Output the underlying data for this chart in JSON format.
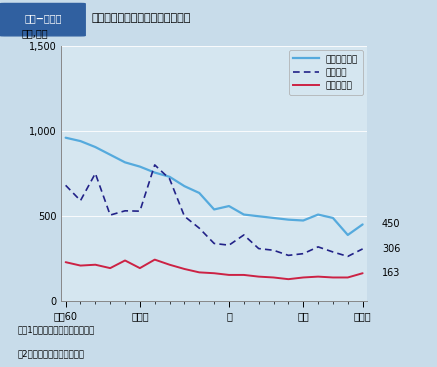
{
  "title": "踏切事故の件数と死傷者数の推移",
  "title_prefix": "第１−４０図",
  "ylabel": "（件,人）",
  "bg_color": "#c8dcea",
  "plot_bg_color": "#d5e6f0",
  "ylim": [
    0,
    1500
  ],
  "yticks": [
    0,
    500,
    1000,
    1500
  ],
  "x_positions": [
    0,
    1,
    2,
    3,
    4,
    5,
    6,
    7,
    8,
    9,
    10,
    11,
    12,
    13,
    14,
    15,
    16,
    17,
    18,
    19,
    20
  ],
  "x_tick_labels_pos": [
    0,
    5,
    11,
    16,
    20
  ],
  "x_tick_labels": [
    "昭和60",
    "平成２",
    "７",
    "１２",
    "１７年"
  ],
  "accident_counts": [
    960,
    940,
    905,
    860,
    815,
    790,
    755,
    730,
    675,
    635,
    538,
    558,
    508,
    498,
    488,
    478,
    473,
    508,
    488,
    388,
    450
  ],
  "injury_counts": [
    680,
    590,
    750,
    505,
    530,
    528,
    800,
    718,
    498,
    428,
    338,
    328,
    388,
    308,
    298,
    268,
    278,
    318,
    288,
    262,
    306
  ],
  "death_counts": [
    228,
    208,
    213,
    193,
    238,
    193,
    243,
    213,
    188,
    168,
    163,
    153,
    153,
    143,
    138,
    128,
    138,
    143,
    138,
    138,
    163
  ],
  "line1_color": "#55aadd",
  "line2_color": "#222288",
  "line3_color": "#cc2244",
  "legend_labels": [
    "踏切事故件数",
    "死傷者数",
    "うち死者数"
  ],
  "end_labels": [
    "450",
    "306",
    "163"
  ],
  "note1": "注　1　国土交通省資料による。",
  "note2": "　2　死者数は２４時間死者"
}
